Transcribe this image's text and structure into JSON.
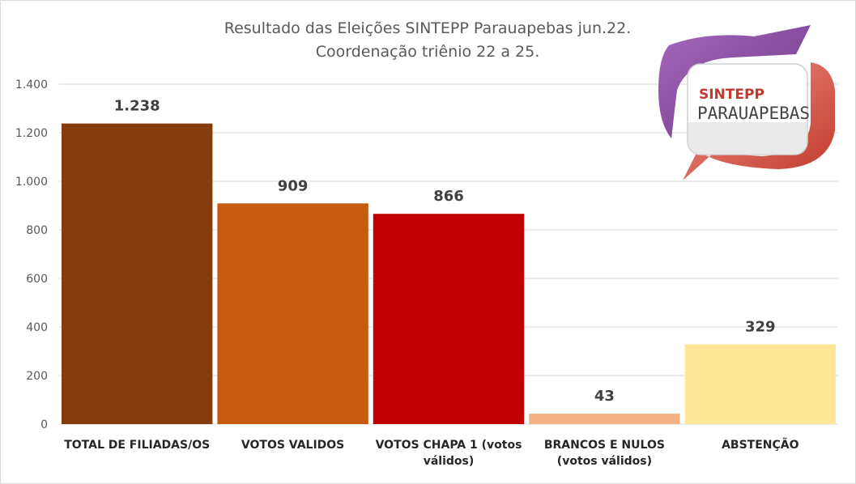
{
  "chart_data": {
    "type": "bar",
    "title": "Resultado das Eleições SINTEPP Parauapebas jun.22.",
    "subtitle": "Coordenação triênio 22 a 25.",
    "categories": [
      [
        "TOTAL DE FILIADAS/OS"
      ],
      [
        "VOTOS VALIDOS"
      ],
      [
        "VOTOS CHAPA 1 (votos",
        "válidos)"
      ],
      [
        "BRANCOS E NULOS",
        "(votos válidos)"
      ],
      [
        "ABSTENÇÃO"
      ]
    ],
    "values": [
      1238,
      909,
      866,
      43,
      329
    ],
    "data_labels": [
      "1.238",
      "909",
      "866",
      "43",
      "329"
    ],
    "bar_colors": [
      "#843c0c",
      "#c55a11",
      "#c00000",
      "#f4b183",
      "#ffe699"
    ],
    "ylim": [
      0,
      1400
    ],
    "yticks": [
      0,
      200,
      400,
      600,
      800,
      1000,
      1200,
      1400
    ],
    "ytick_labels": [
      "0",
      "200",
      "400",
      "600",
      "800",
      "1.000",
      "1.200",
      "1.400"
    ],
    "grid": true,
    "legend": "none"
  },
  "logo": {
    "line1": "SINTEPP",
    "line2": "PARAUAPEBAS"
  }
}
